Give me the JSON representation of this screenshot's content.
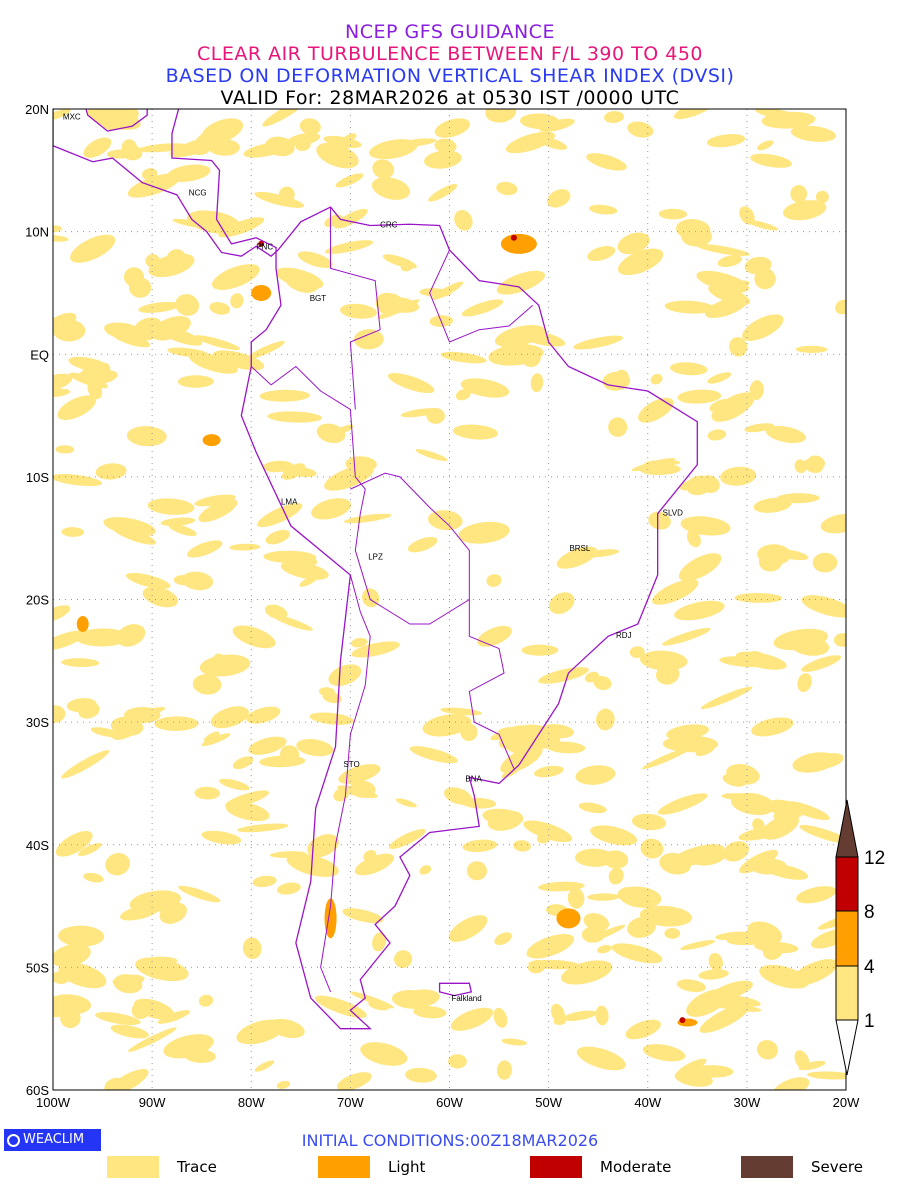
{
  "titles": {
    "line1": "NCEP GFS GUIDANCE",
    "line2": "CLEAR AIR TURBULENCE BETWEEN F/L 390 TO 450",
    "line3": "BASED ON DEFORMATION VERTICAL SHEAR INDEX (DVSI)",
    "line4": "VALID For: 28MAR2026 at 0530 IST /0000 UTC"
  },
  "axes": {
    "lat_labels": [
      "20N",
      "10N",
      "EQ",
      "10S",
      "20S",
      "30S",
      "40S",
      "50S",
      "60S"
    ],
    "lon_labels": [
      "100W",
      "90W",
      "80W",
      "70W",
      "60W",
      "50W",
      "40W",
      "30W",
      "20W"
    ]
  },
  "cities": [
    {
      "name": "MXC",
      "lon": -99,
      "lat": 19.4
    },
    {
      "name": "NCG",
      "lon": -86.3,
      "lat": 13.2
    },
    {
      "name": "PNC",
      "lon": -79.5,
      "lat": 8.8
    },
    {
      "name": "BGT",
      "lon": -74.1,
      "lat": 4.6
    },
    {
      "name": "CRC",
      "lon": -67,
      "lat": 10.6
    },
    {
      "name": "LMA",
      "lon": -77,
      "lat": -12
    },
    {
      "name": "LPZ",
      "lon": -68.2,
      "lat": -16.5
    },
    {
      "name": "BRSL",
      "lon": -47.9,
      "lat": -15.8
    },
    {
      "name": "SLVD",
      "lon": -38.5,
      "lat": -12.9
    },
    {
      "name": "RDJ",
      "lon": -43.2,
      "lat": -22.9
    },
    {
      "name": "STO",
      "lon": -70.7,
      "lat": -33.4
    },
    {
      "name": "BNA",
      "lon": -58.4,
      "lat": -34.6
    },
    {
      "name": "Falkland",
      "lon": -59.8,
      "lat": -52.5
    }
  ],
  "colorbar": {
    "ticks": [
      "1",
      "4",
      "8",
      "12"
    ],
    "colors": [
      "#ffe680",
      "#ffa000",
      "#c00000",
      "#643c32"
    ]
  },
  "footer": {
    "logo": "WEACLIM",
    "initial": "INITIAL  CONDITIONS:00Z18MAR2026"
  },
  "legend": [
    {
      "label": "Trace",
      "color": "#ffe680"
    },
    {
      "label": "Light",
      "color": "#ffa000"
    },
    {
      "label": "Moderate",
      "color": "#c00000"
    },
    {
      "label": "Severe",
      "color": "#643c32"
    }
  ]
}
